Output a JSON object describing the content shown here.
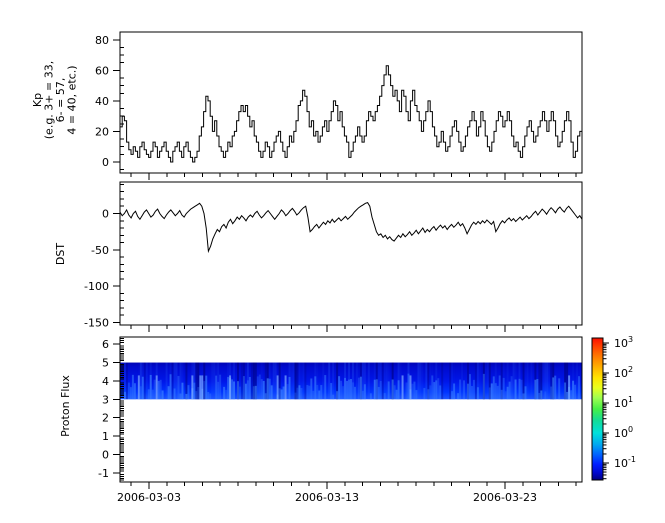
{
  "figure": {
    "background": "#ffffff",
    "frame_color": "#000000"
  },
  "x_axis": {
    "tick_labels": [
      "2006-03-03",
      "2006-03-13",
      "2006-03-23"
    ]
  },
  "chart_data": [
    {
      "id": "kp",
      "type": "line",
      "line_style": "step",
      "ylabel_lines": [
        "Kp",
        "(e.g. 3+ = 33,",
        "6- = 57,",
        "4 = 40, etc.)"
      ],
      "yticks": [
        0,
        20,
        40,
        60,
        80
      ],
      "y_minor_step": 5,
      "ylim": [
        -7.2,
        85.1
      ],
      "color": "#000000",
      "values": [
        23,
        30,
        27,
        13,
        8,
        5,
        10,
        7,
        3,
        10,
        13,
        8,
        5,
        3,
        7,
        13,
        10,
        3,
        7,
        10,
        13,
        7,
        3,
        0,
        7,
        10,
        13,
        7,
        3,
        10,
        13,
        7,
        3,
        0,
        3,
        7,
        17,
        23,
        33,
        43,
        40,
        30,
        20,
        27,
        17,
        10,
        7,
        3,
        7,
        13,
        10,
        17,
        20,
        27,
        33,
        37,
        33,
        37,
        30,
        23,
        27,
        17,
        13,
        7,
        3,
        7,
        13,
        10,
        3,
        7,
        13,
        17,
        20,
        13,
        7,
        3,
        10,
        17,
        13,
        20,
        27,
        37,
        40,
        47,
        43,
        33,
        23,
        27,
        17,
        20,
        13,
        17,
        23,
        27,
        20,
        27,
        33,
        40,
        37,
        27,
        33,
        23,
        17,
        13,
        3,
        7,
        13,
        17,
        23,
        17,
        13,
        17,
        27,
        33,
        30,
        27,
        33,
        37,
        43,
        50,
        57,
        63,
        57,
        50,
        43,
        47,
        40,
        33,
        47,
        43,
        33,
        27,
        40,
        47,
        37,
        33,
        27,
        20,
        27,
        33,
        40,
        33,
        23,
        17,
        10,
        13,
        20,
        13,
        7,
        10,
        17,
        23,
        27,
        20,
        13,
        7,
        10,
        17,
        23,
        27,
        33,
        27,
        17,
        23,
        33,
        27,
        17,
        10,
        7,
        13,
        20,
        27,
        33,
        30,
        23,
        27,
        33,
        27,
        17,
        10,
        13,
        7,
        3,
        10,
        17,
        23,
        27,
        20,
        13,
        17,
        23,
        27,
        33,
        27,
        20,
        27,
        33,
        27,
        17,
        10,
        13,
        20,
        27,
        33,
        27,
        13,
        3,
        7,
        17,
        20
      ]
    },
    {
      "id": "dst",
      "type": "line",
      "ylabel": "DST",
      "yticks": [
        0,
        -50,
        -100,
        -150
      ],
      "y_minor_step": 10,
      "ylim": [
        -153.6,
        43.4
      ],
      "color": "#000000",
      "values": [
        2,
        -3,
        0,
        5,
        -2,
        -6,
        0,
        3,
        -4,
        -8,
        -3,
        2,
        5,
        0,
        -5,
        -2,
        3,
        6,
        0,
        -4,
        -7,
        -2,
        2,
        5,
        1,
        -3,
        0,
        4,
        -2,
        -5,
        0,
        3,
        6,
        8,
        10,
        12,
        14,
        10,
        0,
        -20,
        -52,
        -45,
        -35,
        -28,
        -22,
        -25,
        -18,
        -15,
        -20,
        -12,
        -8,
        -14,
        -10,
        -5,
        -8,
        -3,
        -6,
        -10,
        -5,
        -2,
        -5,
        0,
        3,
        -2,
        -6,
        -3,
        1,
        4,
        0,
        -4,
        -8,
        -4,
        0,
        5,
        2,
        -3,
        0,
        4,
        7,
        3,
        -2,
        1,
        5,
        8,
        10,
        -5,
        -25,
        -22,
        -18,
        -15,
        -20,
        -16,
        -12,
        -15,
        -10,
        -13,
        -8,
        -12,
        -9,
        -6,
        -10,
        -7,
        -4,
        -8,
        -5,
        -2,
        2,
        5,
        8,
        10,
        12,
        14,
        15,
        10,
        -5,
        -15,
        -25,
        -30,
        -28,
        -33,
        -30,
        -35,
        -32,
        -36,
        -38,
        -34,
        -30,
        -33,
        -28,
        -32,
        -29,
        -25,
        -30,
        -27,
        -23,
        -28,
        -24,
        -20,
        -26,
        -22,
        -25,
        -21,
        -18,
        -23,
        -19,
        -16,
        -20,
        -17,
        -22,
        -18,
        -15,
        -19,
        -16,
        -12,
        -17,
        -14,
        -20,
        -28,
        -22,
        -16,
        -12,
        -15,
        -11,
        -14,
        -10,
        -13,
        -9,
        -12,
        -15,
        -11,
        -25,
        -20,
        -14,
        -10,
        -13,
        -9,
        -6,
        -10,
        -7,
        -11,
        -8,
        -5,
        -9,
        -6,
        -3,
        -7,
        -4,
        0,
        3,
        -2,
        2,
        6,
        3,
        -1,
        4,
        8,
        5,
        1,
        6,
        9,
        5,
        2,
        7,
        10,
        6,
        2,
        -2,
        -6,
        -3,
        -8
      ]
    },
    {
      "id": "proton_flux",
      "type": "heatmap",
      "ylabel": "Proton Flux",
      "yticks": [
        -1,
        0,
        1,
        2,
        3,
        4,
        5,
        6
      ],
      "y_minor_step": 0.1,
      "ylim": [
        -1.5,
        6.39
      ],
      "band": {
        "y_from": 3,
        "y_to": 5
      },
      "colormap": "jet",
      "value_range": [
        "1e-1",
        "1e3"
      ],
      "band_gradient_top_to_bottom": [
        [
          "0",
          "#0004b4"
        ],
        [
          "0.12",
          "#000ace"
        ],
        [
          "0.5",
          "#0016e8"
        ],
        [
          "0.8",
          "#0034ff"
        ],
        [
          "1",
          "#1e55ff"
        ]
      ],
      "noise_seed": 20060301,
      "columns": 233
    }
  ],
  "colorbar": {
    "label_base": "10",
    "exponents": [
      3,
      2,
      1,
      0,
      -1
    ],
    "gradient_top_to_bottom": [
      [
        "0",
        "#fa0f00"
      ],
      [
        "0.05",
        "#ff3a00"
      ],
      [
        "0.13",
        "#ff7a00"
      ],
      [
        "0.21",
        "#ffb400"
      ],
      [
        "0.28",
        "#ffe400"
      ],
      [
        "0.35",
        "#eaff1e"
      ],
      [
        "0.42",
        "#a0ff50"
      ],
      [
        "0.5",
        "#46f046"
      ],
      [
        "0.58",
        "#14dc96"
      ],
      [
        "0.67",
        "#00e0dc"
      ],
      [
        "0.75",
        "#00a8f0"
      ],
      [
        "0.82",
        "#0064ff"
      ],
      [
        "0.89",
        "#001eff"
      ],
      [
        "0.95",
        "#0008cd"
      ],
      [
        "1",
        "#000080"
      ]
    ]
  }
}
